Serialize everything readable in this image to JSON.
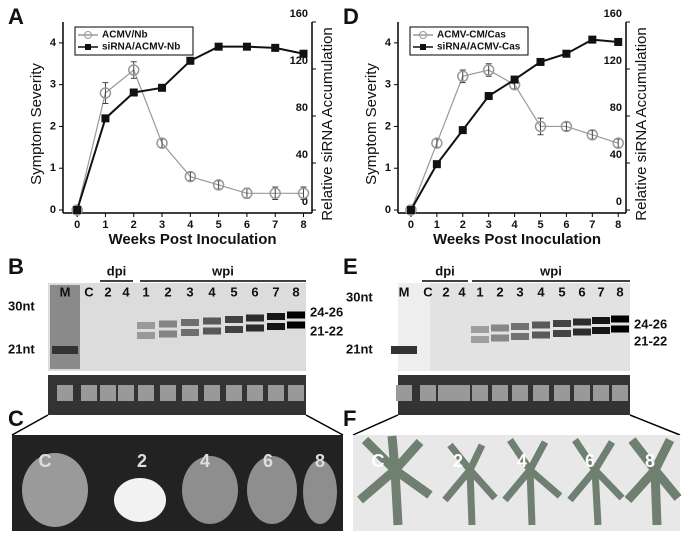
{
  "chart_data": [
    {
      "type": "line",
      "y_label": "Symptom Severity",
      "y2_label": "Relative siRNA Accumulation",
      "x_label": "Weeks Post Inoculation",
      "x": [
        0,
        1,
        2,
        3,
        4,
        5,
        6,
        7,
        8
      ],
      "xlim": [
        -0.5,
        8.3
      ],
      "xticks": [
        0,
        1,
        2,
        3,
        4,
        5,
        6,
        7,
        8
      ],
      "ylim": [
        0,
        4.5
      ],
      "yticks": [
        0,
        1,
        2,
        3,
        4
      ],
      "y2lim": [
        0,
        160
      ],
      "y2ticks": [
        0,
        40,
        80,
        120,
        160
      ],
      "legend": "upper left",
      "series": [
        {
          "name": "ACMV/Nb",
          "color": "#999999",
          "marker": "circle",
          "values": [
            0,
            2.8,
            3.35,
            1.6,
            0.8,
            0.6,
            0.4,
            0.4,
            0.4
          ],
          "errors": [
            0,
            0.25,
            0.2,
            0.1,
            0.1,
            0.1,
            0.12,
            0.15,
            0.15
          ]
        },
        {
          "name": "siRNA/ACMV-Nb",
          "color": "#111111",
          "marker": "square",
          "axis": "y2",
          "values": [
            0,
            78,
            100,
            104,
            127,
            139,
            139,
            138,
            133
          ]
        }
      ]
    },
    {
      "type": "line",
      "y_label": "Symptom Severity",
      "y2_label": "Relative siRNA Accumulation",
      "x_label": "Weeks Post Inoculation",
      "x": [
        0,
        1,
        2,
        3,
        4,
        5,
        6,
        7,
        8
      ],
      "xlim": [
        -0.5,
        8.3
      ],
      "xticks": [
        0,
        1,
        2,
        3,
        4,
        5,
        6,
        7,
        8
      ],
      "ylim": [
        0,
        4.5
      ],
      "yticks": [
        0,
        1,
        2,
        3,
        4
      ],
      "y2lim": [
        0,
        160
      ],
      "y2ticks": [
        0,
        40,
        80,
        120,
        160
      ],
      "legend": "upper left",
      "series": [
        {
          "name": "ACMV-CM/Cas",
          "color": "#999999",
          "marker": "circle",
          "values": [
            0,
            1.6,
            3.2,
            3.35,
            3.0,
            2.0,
            2.0,
            1.8,
            1.6
          ],
          "errors": [
            0,
            0.1,
            0.15,
            0.15,
            0.1,
            0.2,
            0.1,
            0.1,
            0.1
          ]
        },
        {
          "name": "siRNA/ACMV-Cas",
          "color": "#111111",
          "marker": "square",
          "axis": "y2",
          "values": [
            0,
            39,
            68,
            97,
            111,
            126,
            133,
            145,
            143
          ]
        }
      ]
    }
  ],
  "panels": [
    "A",
    "D",
    "B",
    "E",
    "C",
    "F"
  ],
  "blots": [
    {
      "lanes": [
        "M",
        "C",
        "2",
        "4",
        "1",
        "2",
        "3",
        "4",
        "5",
        "6",
        "7",
        "8"
      ],
      "dpi": "dpi",
      "wpi": "wpi",
      "markers": [
        "30nt",
        "21nt"
      ],
      "bands": [
        "24-26",
        "21-22"
      ]
    },
    {
      "lanes": [
        "M",
        "C",
        "2",
        "4",
        "1",
        "2",
        "3",
        "4",
        "5",
        "6",
        "7",
        "8"
      ],
      "dpi": "dpi",
      "wpi": "wpi",
      "markers": [
        "30nt",
        "21nt"
      ],
      "bands": [
        "24-26",
        "21-22"
      ]
    }
  ],
  "photos": [
    {
      "labels": [
        "C",
        "2",
        "4",
        "6",
        "8"
      ]
    },
    {
      "labels": [
        "C",
        "2",
        "4",
        "6",
        "8"
      ]
    }
  ]
}
